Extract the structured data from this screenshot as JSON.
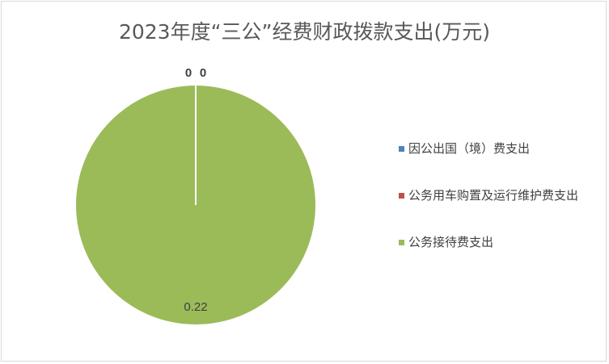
{
  "chart_data": {
    "type": "pie",
    "title": "2023年度“三公”经费财政拨款支出(万元)",
    "categories": [
      "因公出国（境）费支出",
      "公务用车购置及运行维护费支出",
      "公务接待费支出"
    ],
    "values": [
      0,
      0,
      0.22
    ],
    "data_labels": [
      "0",
      "0",
      "0.22"
    ],
    "colors": [
      "#4F81BD",
      "#C0504D",
      "#9BBB59"
    ],
    "legend": "right"
  }
}
